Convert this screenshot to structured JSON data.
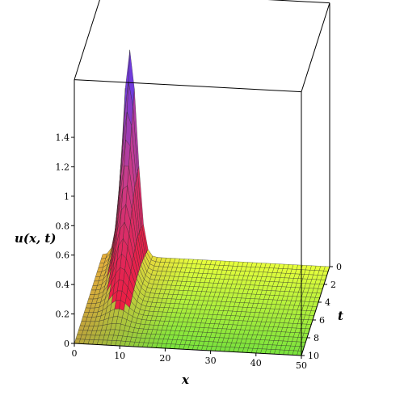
{
  "chart_data": {
    "type": "surface",
    "title": "",
    "xlabel": "x",
    "ylabel": "t",
    "zlabel": "u(x, t)",
    "xlim": [
      0,
      50
    ],
    "ylim": [
      0,
      10
    ],
    "zlim": [
      0,
      1.4
    ],
    "x_ticks": [
      "0",
      "10",
      "20",
      "30",
      "40",
      "50"
    ],
    "t_ticks": [
      "0",
      "2",
      "4",
      "6",
      "8",
      "10"
    ],
    "z_ticks": [
      "0",
      "0.2",
      "0.4",
      "0.6",
      "0.8",
      "1",
      "1.2",
      "1.4"
    ],
    "peak": {
      "x": 6,
      "t": 0,
      "u": 1.4
    },
    "color_low": "#f01a3a",
    "color_mid": "#e8ff3c",
    "color_flat": "#78e23c",
    "color_high": "#5a3cf0",
    "grid": true
  }
}
